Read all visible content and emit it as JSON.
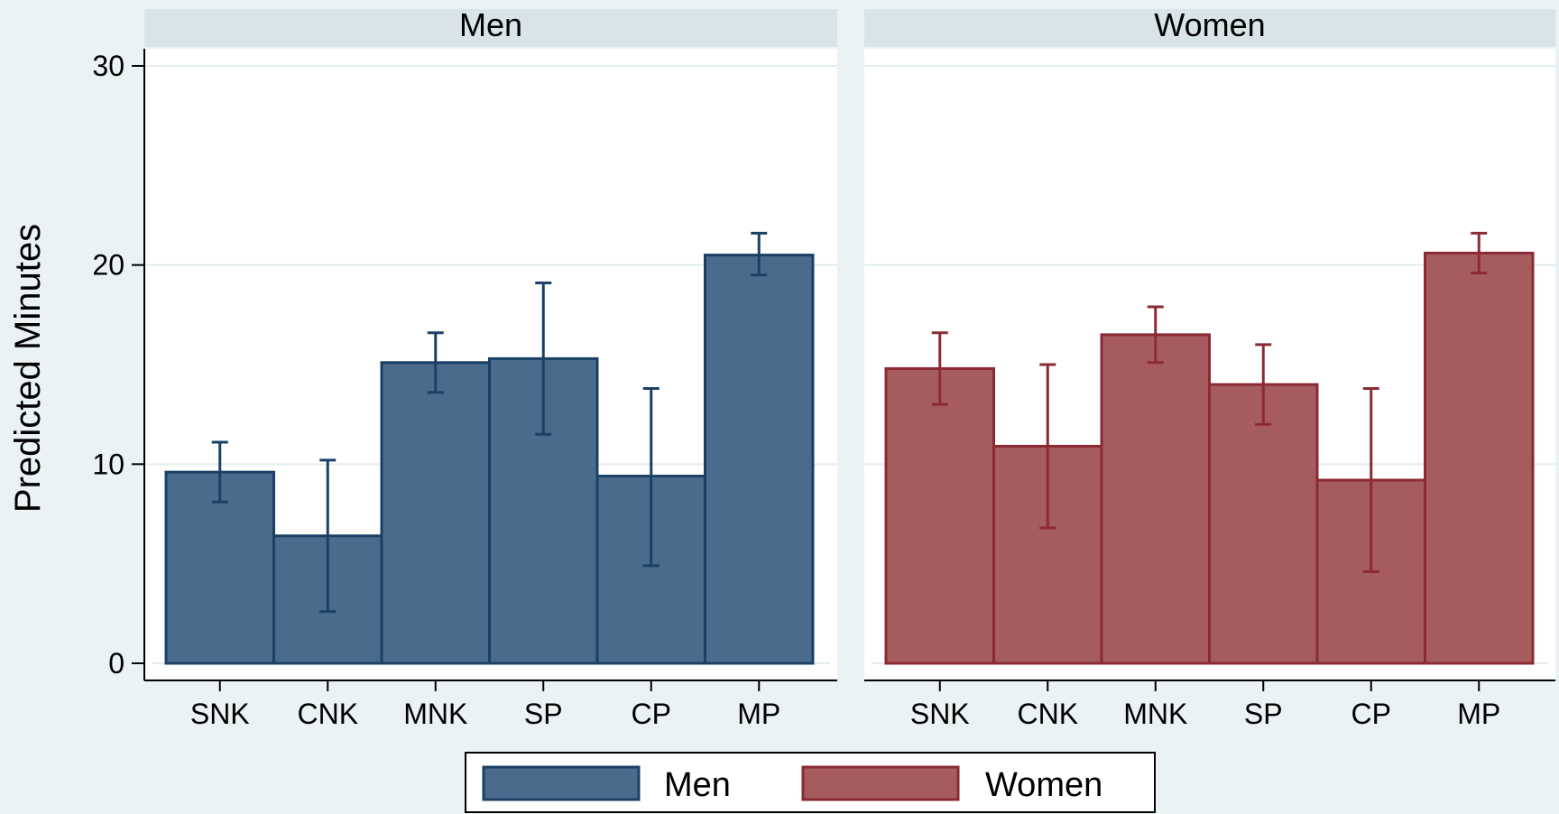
{
  "chart_data": {
    "type": "bar",
    "ylabel": "Predicted Minutes",
    "ylim": [
      0,
      30
    ],
    "yticks": [
      0,
      10,
      20,
      30
    ],
    "grid": true,
    "legend_position": "bottom",
    "categories": [
      "SNK",
      "CNK",
      "MNK",
      "SP",
      "CP",
      "MP"
    ],
    "panels": [
      {
        "title": "Men",
        "series_name": "Men",
        "color": "#4a6b8c",
        "stroke": "#1a4066",
        "values": [
          9.6,
          6.4,
          15.1,
          15.3,
          9.4,
          20.5
        ],
        "ci_low": [
          8.1,
          2.6,
          13.6,
          11.5,
          4.9,
          19.5
        ],
        "ci_high": [
          11.1,
          10.2,
          16.6,
          19.1,
          13.8,
          21.6
        ]
      },
      {
        "title": "Women",
        "series_name": "Women",
        "color": "#a65c5f",
        "stroke": "#8b2a34",
        "values": [
          14.8,
          10.9,
          16.5,
          14.0,
          9.2,
          20.6
        ],
        "ci_low": [
          13.0,
          6.8,
          15.1,
          12.0,
          4.6,
          19.6
        ],
        "ci_high": [
          16.6,
          15.0,
          17.9,
          16.0,
          13.8,
          21.6
        ]
      }
    ],
    "legend": [
      {
        "label": "Men",
        "color": "#4a6b8c",
        "stroke": "#1a4066"
      },
      {
        "label": "Women",
        "color": "#a65c5f",
        "stroke": "#8b2a34"
      }
    ]
  }
}
